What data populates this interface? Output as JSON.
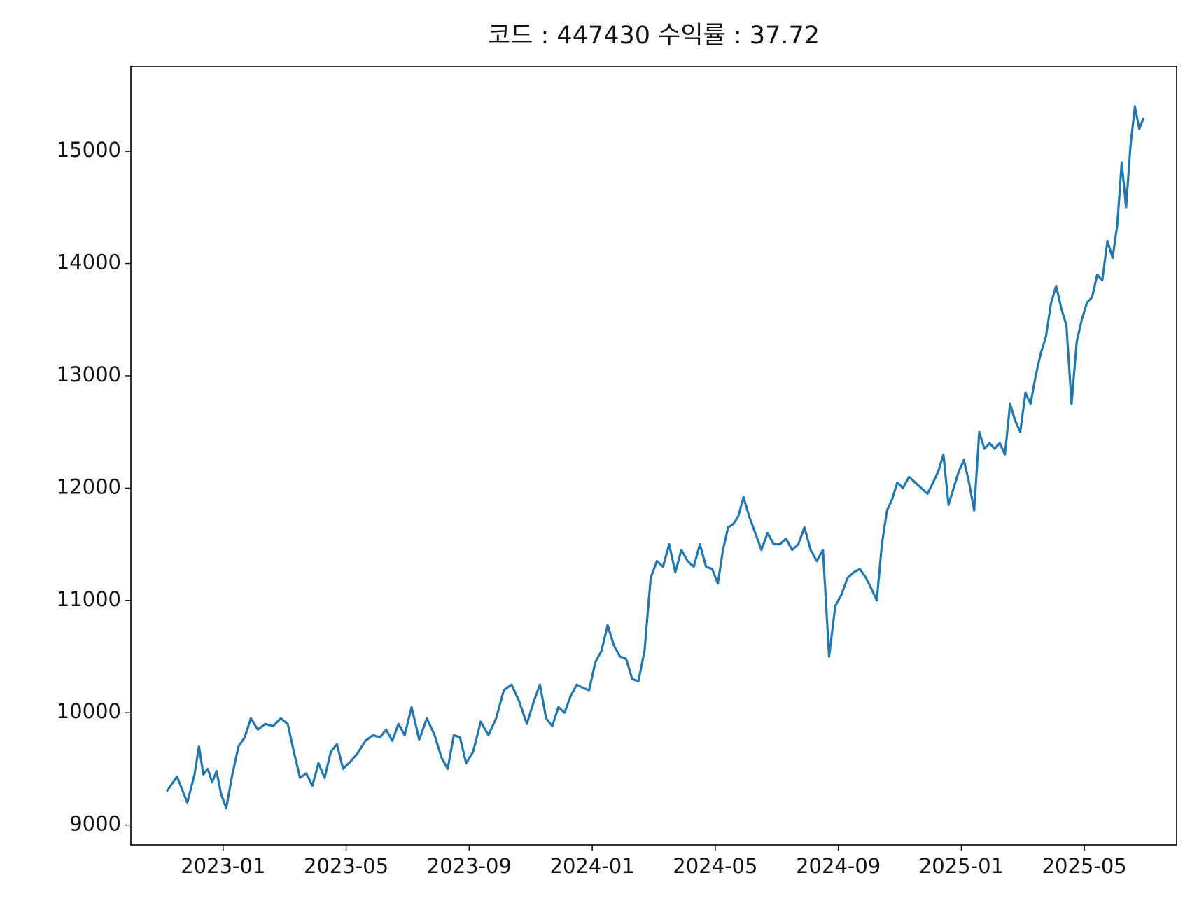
{
  "chart_data": {
    "type": "line",
    "title": "코드 : 447430 수익률 : 37.72",
    "color": "#1f77b4",
    "x": [
      "2022-11",
      "2022-11",
      "2022-11",
      "2022-12",
      "2022-12",
      "2022-12",
      "2022-12",
      "2022-12",
      "2022-12",
      "2022-12",
      "2023-01",
      "2023-01",
      "2023-01",
      "2023-01",
      "2023-01",
      "2023-02",
      "2023-02",
      "2023-02",
      "2023-02",
      "2023-03",
      "2023-03",
      "2023-03",
      "2023-03",
      "2023-03",
      "2023-04",
      "2023-04",
      "2023-04",
      "2023-04",
      "2023-04",
      "2023-05",
      "2023-05",
      "2023-05",
      "2023-05",
      "2023-06",
      "2023-06",
      "2023-06",
      "2023-06",
      "2023-06",
      "2023-07",
      "2023-07",
      "2023-07",
      "2023-07",
      "2023-08",
      "2023-08",
      "2023-08",
      "2023-08",
      "2023-08",
      "2023-09",
      "2023-09",
      "2023-09",
      "2023-09",
      "2023-10",
      "2023-10",
      "2023-10",
      "2023-10",
      "2023-11",
      "2023-11",
      "2023-11",
      "2023-11",
      "2023-11",
      "2023-12",
      "2023-12",
      "2023-12",
      "2023-12",
      "2023-12",
      "2024-01",
      "2024-01",
      "2024-01",
      "2024-01",
      "2024-01",
      "2024-02",
      "2024-02",
      "2024-02",
      "2024-02",
      "2024-02",
      "2024-03",
      "2024-03",
      "2024-03",
      "2024-03",
      "2024-03",
      "2024-04",
      "2024-04",
      "2024-04",
      "2024-04",
      "2024-04",
      "2024-05",
      "2024-05",
      "2024-05",
      "2024-05",
      "2024-05",
      "2024-05",
      "2024-06",
      "2024-06",
      "2024-06",
      "2024-06",
      "2024-06",
      "2024-07",
      "2024-07",
      "2024-07",
      "2024-07",
      "2024-07",
      "2024-08",
      "2024-08",
      "2024-08",
      "2024-08",
      "2024-08",
      "2024-09",
      "2024-09",
      "2024-09",
      "2024-09",
      "2024-09",
      "2024-10",
      "2024-10",
      "2024-10",
      "2024-10",
      "2024-10",
      "2024-10",
      "2024-11",
      "2024-11",
      "2024-11",
      "2024-11",
      "2024-11",
      "2024-12",
      "2024-12",
      "2024-12",
      "2024-12",
      "2024-12",
      "2024-12",
      "2025-01",
      "2025-01",
      "2025-01",
      "2025-01",
      "2025-01",
      "2025-01",
      "2025-02",
      "2025-02",
      "2025-02",
      "2025-02",
      "2025-02",
      "2025-02",
      "2025-03",
      "2025-03",
      "2025-03",
      "2025-03",
      "2025-03",
      "2025-03",
      "2025-04",
      "2025-04",
      "2025-04",
      "2025-04",
      "2025-04",
      "2025-04",
      "2025-05",
      "2025-05",
      "2025-05",
      "2025-05",
      "2025-05",
      "2025-05",
      "2025-06",
      "2025-06",
      "2025-06",
      "2025-06",
      "2025-06",
      "2025-06",
      "2025-06"
    ],
    "values": [
      9300,
      9430,
      9200,
      9450,
      9700,
      9450,
      9500,
      9380,
      9480,
      9280,
      9150,
      9450,
      9700,
      9780,
      9950,
      9850,
      9900,
      9880,
      9950,
      9900,
      9650,
      9420,
      9460,
      9350,
      9550,
      9420,
      9650,
      9720,
      9500,
      9560,
      9640,
      9750,
      9800,
      9780,
      9850,
      9750,
      9900,
      9800,
      10050,
      9760,
      9950,
      9800,
      9600,
      9500,
      9800,
      9780,
      9550,
      9650,
      9920,
      9800,
      9950,
      10200,
      10250,
      10100,
      9900,
      10100,
      10250,
      9950,
      9880,
      10050,
      10000,
      10150,
      10250,
      10220,
      10200,
      10450,
      10550,
      10780,
      10600,
      10500,
      10480,
      10300,
      10280,
      10550,
      11200,
      11350,
      11300,
      11500,
      11250,
      11450,
      11350,
      11300,
      11500,
      11300,
      11280,
      11150,
      11450,
      11650,
      11680,
      11750,
      11920,
      11750,
      11600,
      11450,
      11600,
      11500,
      11500,
      11550,
      11450,
      11500,
      11650,
      11450,
      11350,
      11450,
      10500,
      10950,
      11050,
      11200,
      11250,
      11280,
      11200,
      11100,
      11000,
      11500,
      11800,
      11900,
      12050,
      12000,
      12100,
      12050,
      12000,
      11950,
      12050,
      12150,
      12300,
      11850,
      12000,
      12150,
      12250,
      12050,
      11800,
      12500,
      12350,
      12400,
      12350,
      12400,
      12300,
      12750,
      12600,
      12500,
      12850,
      12750,
      13000,
      13200,
      13350,
      13650,
      13800,
      13600,
      13450,
      12750,
      13300,
      13500,
      13650,
      13700,
      13900,
      13850,
      14200,
      14050,
      14350,
      14900,
      14500,
      15050,
      15400,
      15200,
      15300
    ],
    "xlim": [
      "2022-10",
      "2025-08"
    ],
    "xticks": [
      "2023-01",
      "2023-05",
      "2023-09",
      "2024-01",
      "2024-05",
      "2024-09",
      "2025-01",
      "2025-05"
    ],
    "ylim": [
      8823,
      15755
    ],
    "yticks": [
      9000,
      10000,
      11000,
      12000,
      13000,
      14000,
      15000
    ]
  }
}
